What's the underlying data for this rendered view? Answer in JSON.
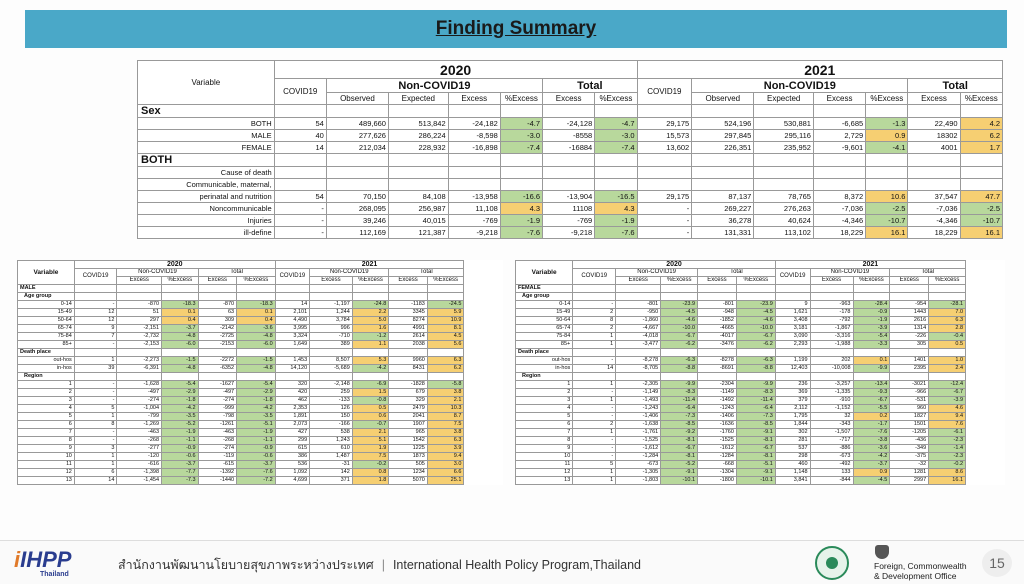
{
  "title": "Finding Summary",
  "main": {
    "variable": "Variable",
    "years": [
      "2020",
      "2021"
    ],
    "covid": "COVID19",
    "noncovid": "Non-COVID19",
    "total": "Total",
    "cols": [
      "Observed",
      "Expected",
      "Excess",
      "%Excess"
    ],
    "tcols": [
      "Excess",
      "%Excess"
    ],
    "sex_label": "Sex",
    "both_label": "BOTH",
    "cause_label": "Cause of death",
    "sex_rows": [
      {
        "label": "BOTH",
        "v": [
          "54",
          "489,660",
          "513,842",
          "-24,182",
          "-4.7",
          "-24,128",
          "-4.7",
          "29,175",
          "524,196",
          "530,881",
          "-6,685",
          "-1.3",
          "22,490",
          "4.2"
        ]
      },
      {
        "label": "MALE",
        "v": [
          "40",
          "277,626",
          "286,224",
          "-8,598",
          "-3.0",
          "-8558",
          "-3.0",
          "15,573",
          "297,845",
          "295,116",
          "2,729",
          "0.9",
          "18302",
          "6.2"
        ]
      },
      {
        "label": "FEMALE",
        "v": [
          "14",
          "212,034",
          "228,932",
          "-16,898",
          "-7.4",
          "-16884",
          "-7.4",
          "13,602",
          "226,351",
          "235,952",
          "-9,601",
          "-4.1",
          "4001",
          "1.7"
        ]
      }
    ],
    "cause_rows": [
      {
        "label1": "Communicable, maternal,",
        "label": "perinatal and nutrition",
        "v": [
          "54",
          "70,150",
          "84,108",
          "-13,958",
          "-16.6",
          "-13,904",
          "-16.5",
          "29,175",
          "87,137",
          "78,765",
          "8,372",
          "10.6",
          "37,547",
          "47.7"
        ]
      },
      {
        "label": "Noncommunicable",
        "v": [
          "-",
          "268,095",
          "256,987",
          "11,108",
          "4.3",
          "11108",
          "4.3",
          "-",
          "269,227",
          "276,263",
          "-7,036",
          "-2.5",
          "-7,036",
          "-2.5"
        ]
      },
      {
        "label": "Injuries",
        "v": [
          "-",
          "39,246",
          "40,015",
          "-769",
          "-1.9",
          "-769",
          "-1.9",
          "-",
          "36,278",
          "40,624",
          "-4,346",
          "-10.7",
          "-4,346",
          "-10.7"
        ]
      },
      {
        "label": "ill-define",
        "v": [
          "-",
          "112,169",
          "121,387",
          "-9,218",
          "-7.6",
          "-9,218",
          "-7.6",
          "-",
          "131,331",
          "113,102",
          "18,229",
          "16.1",
          "18,229",
          "16.1"
        ]
      }
    ]
  },
  "male": {
    "sex": "MALE",
    "variable": "Variable",
    "years": [
      "2020",
      "2021"
    ],
    "covid": "COVID19",
    "noncovid": "Non-COVID19",
    "total": "Total",
    "excess": "Excess",
    "pexcess": "%Excess",
    "age_label": "Age group",
    "death_label": "Death place",
    "region_label": "Region",
    "age_rows": [
      {
        "l": "0-14",
        "v": [
          "-",
          "-870",
          "-18.3",
          "-870",
          "-18.3",
          "14",
          "-1,197",
          "-24.8",
          "-1183",
          "-24.5"
        ]
      },
      {
        "l": "15-49",
        "v": [
          "12",
          "51",
          "0.1",
          "63",
          "0.1",
          "2,101",
          "1,244",
          "2.2",
          "3345",
          "5.9"
        ]
      },
      {
        "l": "50-64",
        "v": [
          "12",
          "297",
          "0.4",
          "309",
          "0.4",
          "4,490",
          "3,784",
          "5.0",
          "8274",
          "10.9"
        ]
      },
      {
        "l": "65-74",
        "v": [
          "9",
          "-2,151",
          "-3.7",
          "-2142",
          "-3.6",
          "3,995",
          "996",
          "1.6",
          "4991",
          "8.1"
        ]
      },
      {
        "l": "75-84",
        "v": [
          "7",
          "-2,732",
          "-4.8",
          "-2725",
          "-4.8",
          "3,324",
          "-710",
          "-1.2",
          "2614",
          "4.5"
        ]
      },
      {
        "l": "85+",
        "v": [
          "-",
          "-2,153",
          "-6.0",
          "-2153",
          "-6.0",
          "1,649",
          "389",
          "1.1",
          "2038",
          "5.6"
        ]
      }
    ],
    "death_rows": [
      {
        "l": "out-hos",
        "v": [
          "1",
          "-2,273",
          "-1.5",
          "-2272",
          "-1.5",
          "1,453",
          "8,507",
          "5.3",
          "9960",
          "6.3"
        ]
      },
      {
        "l": "in-hos",
        "v": [
          "39",
          "-6,391",
          "-4.8",
          "-6352",
          "-4.8",
          "14,120",
          "-5,689",
          "-4.2",
          "8431",
          "6.2"
        ]
      }
    ],
    "region_rows": [
      {
        "l": "1",
        "v": [
          "-",
          "-1,628",
          "-5.4",
          "-1627",
          "-5.4",
          "320",
          "-2,148",
          "-6.9",
          "-1828",
          "-5.8"
        ]
      },
      {
        "l": "2",
        "v": [
          "-",
          "-497",
          "-2.9",
          "-497",
          "-2.9",
          "420",
          "259",
          "1.5",
          "679",
          "3.8"
        ]
      },
      {
        "l": "3",
        "v": [
          "-",
          "-274",
          "-1.8",
          "-274",
          "-1.8",
          "462",
          "-133",
          "-0.8",
          "329",
          "2.1"
        ]
      },
      {
        "l": "4",
        "v": [
          "5",
          "-1,004",
          "-4.2",
          "-999",
          "-4.2",
          "2,353",
          "126",
          "0.5",
          "2479",
          "10.3"
        ]
      },
      {
        "l": "5",
        "v": [
          "1",
          "-799",
          "-3.5",
          "-798",
          "-3.5",
          "1,891",
          "150",
          "0.6",
          "2041",
          "8.7"
        ]
      },
      {
        "l": "6",
        "v": [
          "8",
          "-1,269",
          "-5.2",
          "-1261",
          "-5.1",
          "2,073",
          "-166",
          "-0.7",
          "1907",
          "7.5"
        ]
      },
      {
        "l": "7",
        "v": [
          "-",
          "-463",
          "-1.9",
          "-463",
          "-1.9",
          "427",
          "538",
          "2.1",
          "965",
          "3.8"
        ]
      },
      {
        "l": "8",
        "v": [
          "-",
          "-268",
          "-1.1",
          "-268",
          "-1.1",
          "299",
          "1,243",
          "5.1",
          "1542",
          "6.3"
        ]
      },
      {
        "l": "9",
        "v": [
          "3",
          "-277",
          "-0.9",
          "-274",
          "-0.9",
          "615",
          "610",
          "1.9",
          "1225",
          "3.9"
        ]
      },
      {
        "l": "10",
        "v": [
          "1",
          "-120",
          "-0.6",
          "-119",
          "-0.6",
          "386",
          "1,487",
          "7.5",
          "1873",
          "9.4"
        ]
      },
      {
        "l": "11",
        "v": [
          "1",
          "-616",
          "-3.7",
          "-615",
          "-3.7",
          "536",
          "-31",
          "-0.2",
          "505",
          "3.0"
        ]
      },
      {
        "l": "12",
        "v": [
          "6",
          "-1,398",
          "-7.7",
          "-1392",
          "-7.6",
          "1,092",
          "142",
          "0.8",
          "1234",
          "6.6"
        ]
      },
      {
        "l": "13",
        "v": [
          "14",
          "-1,454",
          "-7.3",
          "-1440",
          "-7.2",
          "4,699",
          "371",
          "1.8",
          "5070",
          "25.1"
        ]
      }
    ]
  },
  "female": {
    "sex": "FEMALE",
    "variable": "Variable",
    "years": [
      "2020",
      "2021"
    ],
    "covid": "COVID19",
    "noncovid": "Non-COVID19",
    "total": "Total",
    "excess": "Excess",
    "pexcess": "%Excess",
    "age_label": "Age group",
    "death_label": "Death place",
    "region_label": "Region",
    "age_rows": [
      {
        "l": "0-14",
        "v": [
          "-",
          "-801",
          "-23.9",
          "-801",
          "-23.9",
          "9",
          "-963",
          "-28.4",
          "-954",
          "-28.1"
        ]
      },
      {
        "l": "15-49",
        "v": [
          "2",
          "-950",
          "-4.5",
          "-948",
          "-4.5",
          "1,621",
          "-178",
          "-0.9",
          "1443",
          "7.0"
        ]
      },
      {
        "l": "50-64",
        "v": [
          "8",
          "-1,860",
          "-4.6",
          "-1852",
          "-4.6",
          "3,408",
          "-792",
          "-1.9",
          "2616",
          "6.3"
        ]
      },
      {
        "l": "65-74",
        "v": [
          "2",
          "-4,667",
          "-10.0",
          "-4665",
          "-10.0",
          "3,181",
          "-1,867",
          "-3.9",
          "1314",
          "2.8"
        ]
      },
      {
        "l": "75-84",
        "v": [
          "1",
          "-4,018",
          "-6.7",
          "-4017",
          "-6.7",
          "3,090",
          "-3,316",
          "-5.4",
          "-226",
          "-0.4"
        ]
      },
      {
        "l": "85+",
        "v": [
          "1",
          "-3,477",
          "-6.2",
          "-3476",
          "-6.2",
          "2,293",
          "-1,988",
          "-3.3",
          "305",
          "0.5"
        ]
      }
    ],
    "death_rows": [
      {
        "l": "out-hos",
        "v": [
          "-",
          "-8,278",
          "-6.3",
          "-8278",
          "-6.3",
          "1,199",
          "202",
          "0.1",
          "1401",
          "1.0"
        ]
      },
      {
        "l": "in-hos",
        "v": [
          "14",
          "-8,705",
          "-8.8",
          "-8691",
          "-8.8",
          "12,403",
          "-10,008",
          "-9.9",
          "2395",
          "2.4"
        ]
      }
    ],
    "region_rows": [
      {
        "l": "1",
        "v": [
          "1",
          "-2,305",
          "-9.9",
          "-2304",
          "-9.9",
          "236",
          "-3,257",
          "-13.4",
          "-3021",
          "-12.4"
        ]
      },
      {
        "l": "2",
        "v": [
          "-",
          "-1,149",
          "-8.3",
          "-1149",
          "-8.3",
          "369",
          "-1,335",
          "-9.3",
          "-966",
          "-6.7"
        ]
      },
      {
        "l": "3",
        "v": [
          "1",
          "-1,493",
          "-11.4",
          "-1492",
          "-11.4",
          "379",
          "-910",
          "-6.7",
          "-531",
          "-3.9"
        ]
      },
      {
        "l": "4",
        "v": [
          "-",
          "-1,243",
          "-6.4",
          "-1243",
          "-6.4",
          "2,112",
          "-1,152",
          "-5.5",
          "960",
          "4.6"
        ]
      },
      {
        "l": "5",
        "v": [
          "-",
          "-1,406",
          "-7.3",
          "-1406",
          "-7.3",
          "1,795",
          "32",
          "0.2",
          "1827",
          "9.4"
        ]
      },
      {
        "l": "6",
        "v": [
          "2",
          "-1,638",
          "-8.5",
          "-1636",
          "-8.5",
          "1,844",
          "-343",
          "-1.7",
          "1501",
          "7.6"
        ]
      },
      {
        "l": "7",
        "v": [
          "1",
          "-1,761",
          "-9.2",
          "-1760",
          "-9.1",
          "302",
          "-1,507",
          "-7.6",
          "-1205",
          "-6.1"
        ]
      },
      {
        "l": "8",
        "v": [
          "-",
          "-1,525",
          "-8.1",
          "-1525",
          "-8.1",
          "281",
          "-717",
          "-3.8",
          "-436",
          "-2.3"
        ]
      },
      {
        "l": "9",
        "v": [
          "-",
          "-1,612",
          "-6.7",
          "-1612",
          "-6.7",
          "537",
          "-886",
          "-3.6",
          "-349",
          "-1.4"
        ]
      },
      {
        "l": "10",
        "v": [
          "-",
          "-1,284",
          "-8.1",
          "-1284",
          "-8.1",
          "298",
          "-673",
          "-4.2",
          "-375",
          "-2.3"
        ]
      },
      {
        "l": "11",
        "v": [
          "5",
          "-673",
          "-5.2",
          "-668",
          "-5.1",
          "460",
          "-492",
          "-3.7",
          "-32",
          "-0.2"
        ]
      },
      {
        "l": "12",
        "v": [
          "1",
          "-1,305",
          "-9.1",
          "-1304",
          "-9.1",
          "1,148",
          "133",
          "0.9",
          "1281",
          "8.6"
        ]
      },
      {
        "l": "13",
        "v": [
          "1",
          "-1,803",
          "-10.1",
          "-1800",
          "-10.1",
          "3,841",
          "-844",
          "-4.5",
          "2997",
          "16.1"
        ]
      }
    ]
  },
  "footer": {
    "logo_main": "IHPP",
    "logo_sub": "Thailand",
    "thai_text": "สำนักงานพัฒนานโยบายสุขภาพระหว่างประเทศ",
    "separator": "|",
    "org_text": "International Health Policy Program,Thailand",
    "fcdo_line1": "Foreign, Commonwealth",
    "fcdo_line2": "& Development Office",
    "page_number": "15"
  }
}
